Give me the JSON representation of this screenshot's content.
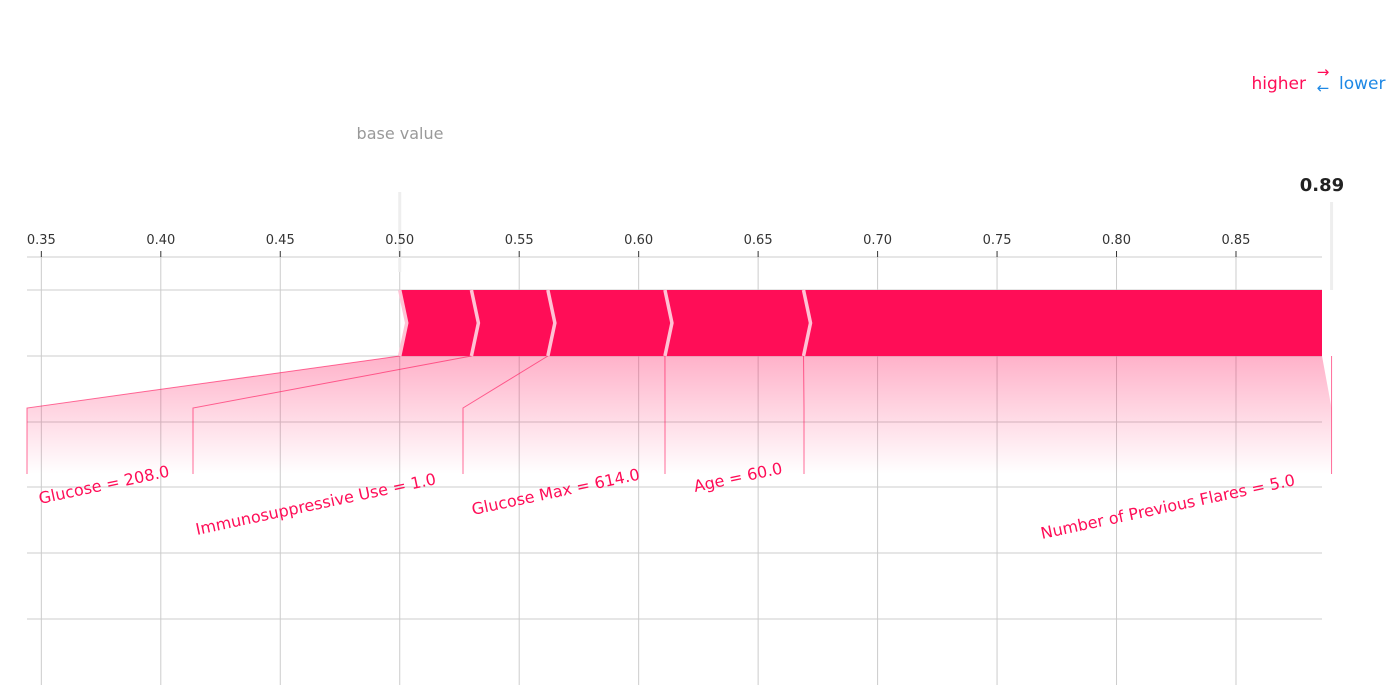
{
  "chart_data": {
    "type": "force",
    "base_value": 0.5,
    "base_value_label": "base value",
    "output_value": 0.89,
    "output_value_label": "0.89",
    "xlim": [
      0.344,
      0.886
    ],
    "ticks": [
      0.35,
      0.4,
      0.45,
      0.5,
      0.55,
      0.6,
      0.65,
      0.7,
      0.75,
      0.8,
      0.85
    ],
    "tick_labels": [
      "0.35",
      "0.40",
      "0.45",
      "0.50",
      "0.55",
      "0.60",
      "0.65",
      "0.70",
      "0.75",
      "0.80",
      "0.85"
    ],
    "grid": true,
    "legend": {
      "higher": "higher",
      "lower": "lower",
      "placement": "top-right"
    },
    "colors": {
      "positive": "#ff0d57",
      "negative": "#1e88e5",
      "grid": "#cccccc",
      "text": "#222222",
      "muted": "#999999"
    },
    "features": [
      {
        "label": "Glucose = 208.0",
        "start": 0.5,
        "end": 0.53
      },
      {
        "label": "Immunosuppressive Use = 1.0",
        "start": 0.53,
        "end": 0.562
      },
      {
        "label": "Glucose Max = 614.0",
        "start": 0.562,
        "end": 0.611
      },
      {
        "label": "Age = 60.0",
        "start": 0.611,
        "end": 0.669
      },
      {
        "label": "Number of Previous Flares = 5.0",
        "start": 0.669,
        "end": 0.886
      }
    ]
  }
}
